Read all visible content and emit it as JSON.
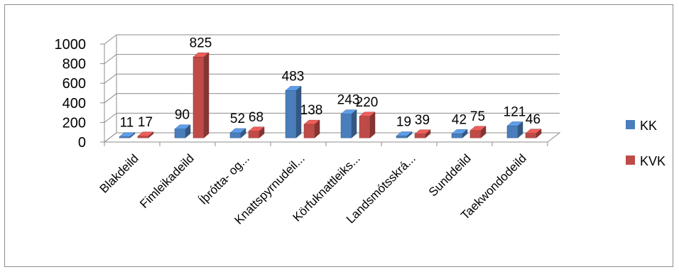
{
  "chart_data": {
    "type": "bar",
    "style": "3d-clustered-column",
    "categories": [
      "Blakdeild",
      "Fimleikadeild",
      "Íþrótta- og...",
      "Knattspyrnudeil...",
      "Körfuknattleiks...",
      "Landsmótsskrá...",
      "Sunddeild",
      "Taekwondodeild"
    ],
    "series": [
      {
        "name": "KK",
        "color": "#4a7ebb",
        "values": [
          11,
          90,
          52,
          483,
          243,
          19,
          42,
          121
        ]
      },
      {
        "name": "KVK",
        "color": "#be4b48",
        "values": [
          17,
          825,
          68,
          138,
          220,
          39,
          75,
          46
        ]
      }
    ],
    "yticks": [
      "0",
      "200",
      "400",
      "600",
      "800",
      "1000"
    ],
    "ylim": [
      0,
      1000
    ],
    "grid": true,
    "legend_position": "right"
  }
}
